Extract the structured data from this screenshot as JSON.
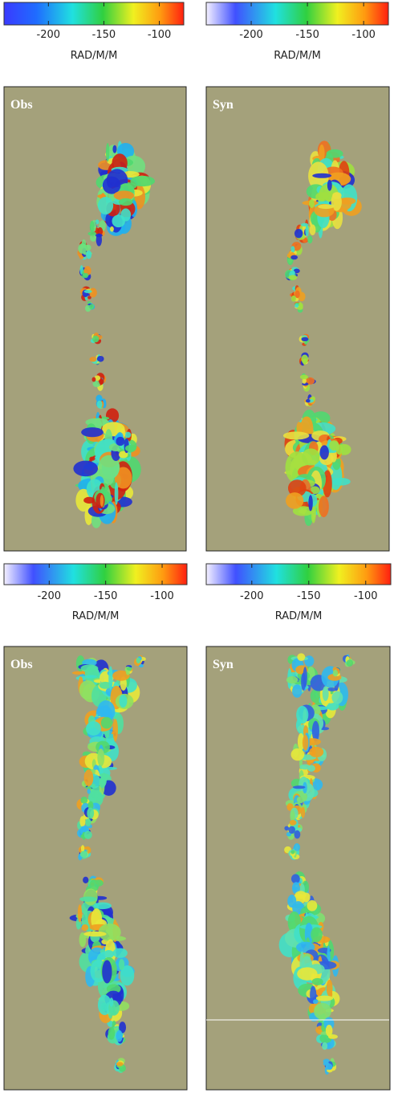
{
  "colorbars": [
    {
      "ticks": [
        -200,
        -150,
        -100
      ],
      "label": "RAD/M/M",
      "range": [
        -240,
        -78
      ]
    },
    {
      "ticks": [
        -200,
        -150,
        -100
      ],
      "label": "RAD/M/M",
      "range": [
        -240,
        -78
      ]
    },
    {
      "ticks": [
        -200,
        -150,
        -100
      ],
      "label": "RAD/M/M",
      "range": [
        -240,
        -78
      ]
    },
    {
      "ticks": [
        -200,
        -150,
        -100
      ],
      "label": "RAD/M/M",
      "range": [
        -240,
        -78
      ]
    }
  ],
  "panels": [
    {
      "title": "Obs"
    },
    {
      "title": "Syn"
    },
    {
      "title": "Obs"
    },
    {
      "title": "Syn"
    }
  ]
}
